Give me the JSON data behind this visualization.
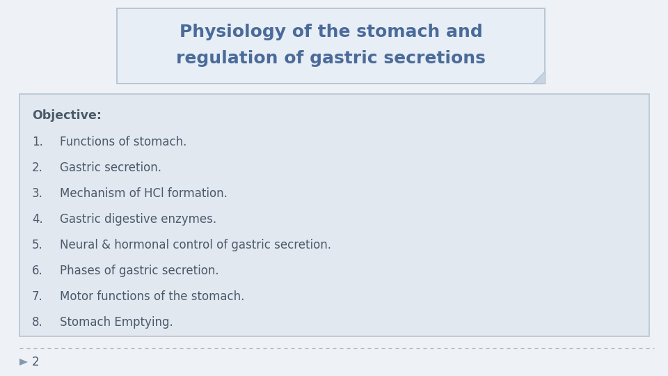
{
  "title_line1": "Physiology of the stomach and",
  "title_line2": "regulation of gastric secretions",
  "title_color": "#4a6b9a",
  "title_bg_color": "#e8eef5",
  "title_border_color": "#b0bece",
  "slide_bg_color": "#eef1f6",
  "content_bg_color": "#e2e8f0",
  "content_border_color": "#b8c4d0",
  "objective_label": "Objective:",
  "items": [
    [
      "1.",
      "Functions of stomach."
    ],
    [
      "2.",
      "Gastric secretion."
    ],
    [
      "3.",
      "Mechanism of HCl formation."
    ],
    [
      "4.",
      "Gastric digestive enzymes."
    ],
    [
      "5.",
      "Neural & hormonal control of gastric secretion."
    ],
    [
      "6.",
      "Phases of gastric secretion."
    ],
    [
      "7.",
      "Motor functions of the stomach."
    ],
    [
      "8.",
      "Stomach Emptying."
    ]
  ],
  "text_color": "#4a5a6a",
  "footer_number": "2",
  "arrow_color": "#8099b0",
  "dashed_line_color": "#b0b8c4",
  "fold_color": "#c8d4e0"
}
